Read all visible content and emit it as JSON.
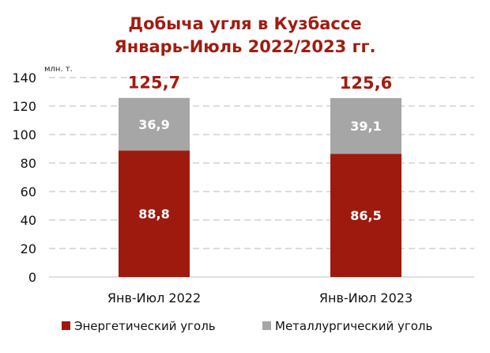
{
  "chart_data": {
    "type": "bar",
    "stacked": true,
    "title": [
      "Добыча угля в Кузбассе",
      "Январь-Июль 2022/2023 гг."
    ],
    "unit_label": "млн. т.",
    "categories": [
      "Янв-Июл 2022",
      "Янв-Июл 2023"
    ],
    "series": [
      {
        "name": "Энергетический уголь",
        "values": [
          88.8,
          86.5
        ],
        "labels": [
          "88,8",
          "86,5"
        ],
        "color": "#9e1a0f"
      },
      {
        "name": "Металлургический уголь",
        "values": [
          36.9,
          39.1
        ],
        "labels": [
          "36,9",
          "39,1"
        ],
        "color": "#a6a6a6"
      }
    ],
    "totals": [
      125.7,
      125.6
    ],
    "total_labels": [
      "125,7",
      "125,6"
    ],
    "ylim": [
      0,
      140
    ],
    "yticks": [
      0,
      20,
      40,
      60,
      80,
      100,
      120,
      140
    ],
    "grid": true,
    "legend_position": "bottom",
    "title_color": "#a01c10"
  }
}
